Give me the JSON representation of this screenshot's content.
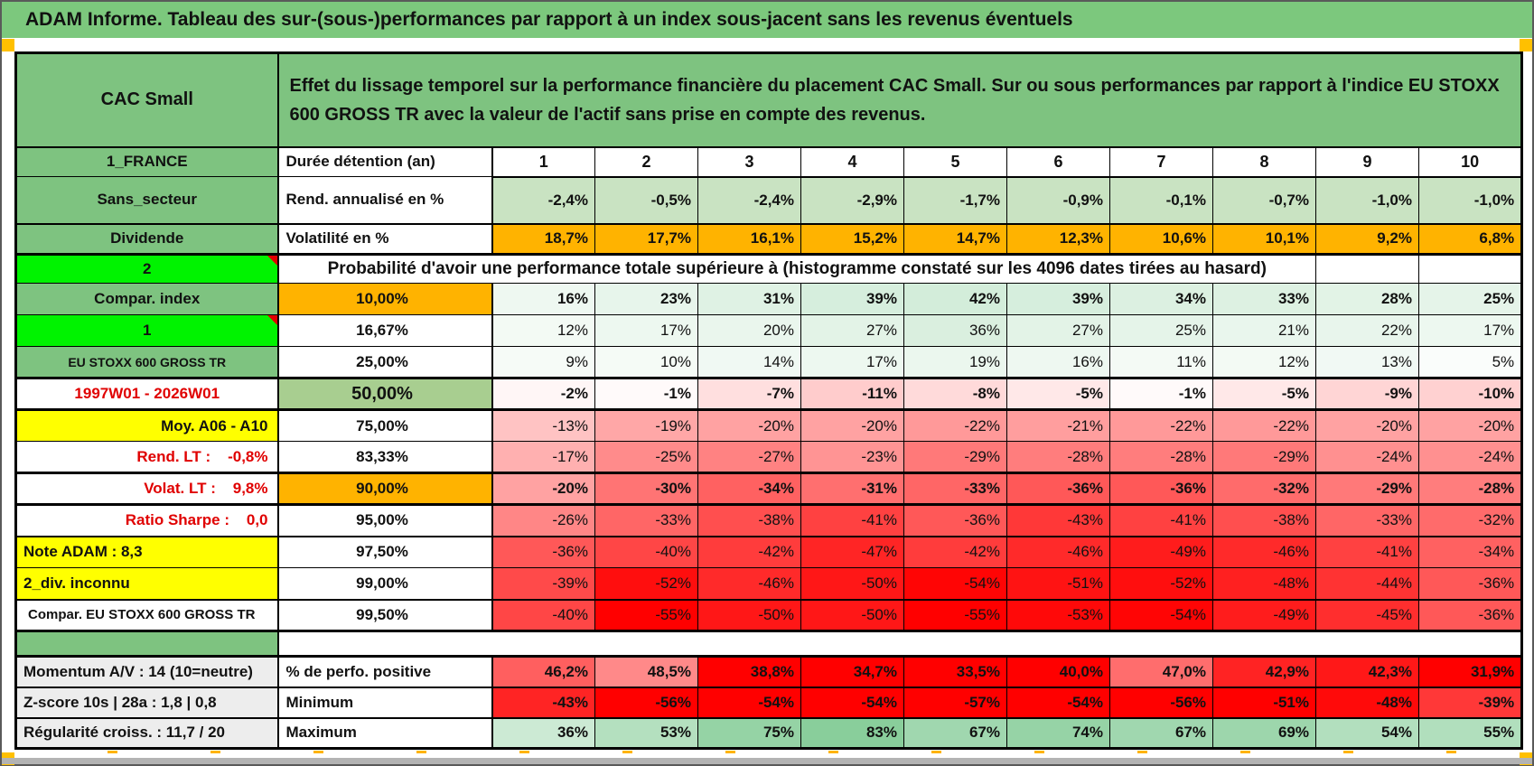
{
  "title": "ADAM Informe. Tableau des sur-(sous-)performances par rapport à un index sous-jacent sans les revenus éventuels",
  "header": {
    "asset": "CAC Small",
    "description": "Effet du lissage temporel sur la performance financière du placement CAC Small. Sur ou sous performances par rapport à l'indice EU STOXX 600 GROSS TR avec la valeur de l'actif sans prise en compte des revenus."
  },
  "left": {
    "rows": [
      {
        "text": "1_FRANCE"
      },
      {
        "text": "Sans_secteur"
      },
      {
        "text": "Dividende"
      },
      {
        "text": "2"
      },
      {
        "text": "Compar. index"
      },
      {
        "text": "1"
      },
      {
        "text": "EU STOXX 600 GROSS TR"
      },
      {
        "text": "1997W01 - 2026W01"
      },
      {
        "text": "Moy. A06 - A10"
      },
      {
        "text": "Rend. LT :    -0,8%"
      },
      {
        "text": "Volat. LT :    9,8%"
      },
      {
        "text": "Ratio Sharpe :    0,0"
      },
      {
        "text": "Note ADAM : 8,3"
      },
      {
        "text": "2_div. inconnu"
      },
      {
        "text": "Compar. EU STOXX 600 GROSS TR"
      },
      {
        "text": "Momentum A/V : 14 (10=neutre)"
      },
      {
        "text": "Z-score 10s | 28a : 1,8 | 0,8"
      },
      {
        "text": "Régularité croiss. : 11,7 / 20"
      }
    ]
  },
  "table": {
    "duration_label": "Durée détention (an)",
    "col_headers": [
      "1",
      "2",
      "3",
      "4",
      "5",
      "6",
      "7",
      "8",
      "9",
      "10"
    ],
    "proba_title": "Probabilité d'avoir une performance totale supérieure à (histogramme constaté sur les 4096 dates tirées au hasard)",
    "rows": [
      {
        "label": "Rend. annualisé en %",
        "dec": 1,
        "bold": true,
        "scale": "static-green",
        "values": [
          -2.4,
          -0.5,
          -2.4,
          -2.9,
          -1.7,
          -0.9,
          -0.1,
          -0.7,
          -1.0,
          -1.0
        ]
      },
      {
        "label": "Volatilité en %",
        "dec": 1,
        "bold": true,
        "scale": "static-orange",
        "values": [
          18.7,
          17.7,
          16.1,
          15.2,
          14.7,
          12.3,
          10.6,
          10.1,
          9.2,
          6.8
        ]
      },
      {
        "label": "10,00%",
        "dec": 0,
        "bold": true,
        "scale": "global",
        "values": [
          16,
          23,
          31,
          39,
          42,
          39,
          34,
          33,
          28,
          25
        ]
      },
      {
        "label": "16,67%",
        "dec": 0,
        "bold": false,
        "scale": "global",
        "values": [
          12,
          17,
          20,
          27,
          36,
          27,
          25,
          21,
          22,
          17
        ]
      },
      {
        "label": "25,00%",
        "dec": 0,
        "bold": false,
        "scale": "global",
        "values": [
          9,
          10,
          14,
          17,
          19,
          16,
          11,
          12,
          13,
          5
        ]
      },
      {
        "label": "50,00%",
        "dec": 0,
        "bold": true,
        "scale": "global",
        "values": [
          -2,
          -1,
          -7,
          -11,
          -8,
          -5,
          -1,
          -5,
          -9,
          -10
        ]
      },
      {
        "label": "75,00%",
        "dec": 0,
        "bold": false,
        "scale": "global",
        "values": [
          -13,
          -19,
          -20,
          -20,
          -22,
          -21,
          -22,
          -22,
          -20,
          -20
        ]
      },
      {
        "label": "83,33%",
        "dec": 0,
        "bold": false,
        "scale": "global",
        "values": [
          -17,
          -25,
          -27,
          -23,
          -29,
          -28,
          -28,
          -29,
          -24,
          -24
        ]
      },
      {
        "label": "90,00%",
        "dec": 0,
        "bold": true,
        "scale": "global",
        "values": [
          -20,
          -30,
          -34,
          -31,
          -33,
          -36,
          -36,
          -32,
          -29,
          -28
        ]
      },
      {
        "label": "95,00%",
        "dec": 0,
        "bold": false,
        "scale": "global",
        "values": [
          -26,
          -33,
          -38,
          -41,
          -36,
          -43,
          -41,
          -38,
          -33,
          -32
        ]
      },
      {
        "label": "97,50%",
        "dec": 0,
        "bold": false,
        "scale": "global",
        "values": [
          -36,
          -40,
          -42,
          -47,
          -42,
          -46,
          -49,
          -46,
          -41,
          -34
        ]
      },
      {
        "label": "99,00%",
        "dec": 0,
        "bold": false,
        "scale": "global",
        "values": [
          -39,
          -52,
          -46,
          -50,
          -54,
          -51,
          -52,
          -48,
          -44,
          -36
        ]
      },
      {
        "label": "99,50%",
        "dec": 0,
        "bold": false,
        "scale": "global",
        "values": [
          -40,
          -55,
          -50,
          -50,
          -55,
          -53,
          -54,
          -49,
          -45,
          -36
        ]
      },
      {
        "label": "% de perfo. positive",
        "dec": 1,
        "bold": true,
        "scale": "redpos",
        "values": [
          46.2,
          48.5,
          38.8,
          34.7,
          33.5,
          40.0,
          47.0,
          42.9,
          42.3,
          31.9
        ]
      },
      {
        "label": "Minimum",
        "dec": 0,
        "bold": true,
        "scale": "redmin",
        "values": [
          -43,
          -56,
          -54,
          -54,
          -57,
          -54,
          -56,
          -51,
          -48,
          -39
        ]
      },
      {
        "label": "Maximum",
        "dec": 0,
        "bold": true,
        "scale": "greenmax",
        "values": [
          36,
          53,
          75,
          83,
          67,
          74,
          67,
          69,
          54,
          55
        ]
      }
    ]
  },
  "colors": {
    "page_green": "#7CC87D",
    "cell_green": "#7EC380",
    "bright_green": "#00F300",
    "orange": "#FFB300",
    "yellow": "#FFFF00",
    "cell_light_green": "#C9E3C2",
    "label_green_50": "#A8CE90",
    "scale_red": "#FF0000",
    "scale_green": "#63BE7B",
    "corner_square_orange": "#FFC000"
  }
}
